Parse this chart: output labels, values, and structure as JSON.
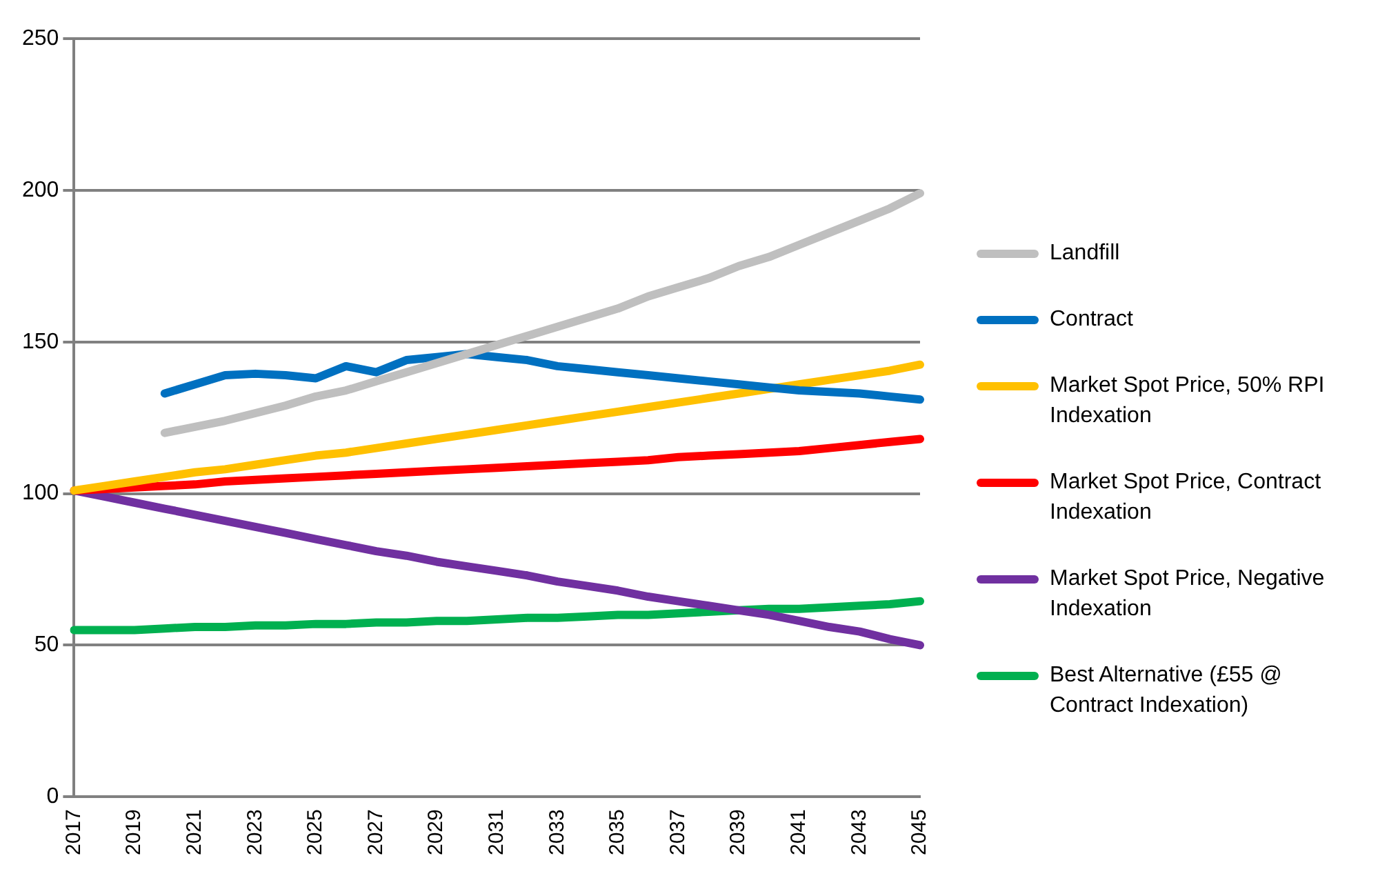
{
  "chart_data": {
    "type": "line",
    "categories": [
      "2017",
      null,
      "2019",
      null,
      "2021",
      null,
      "2023",
      null,
      "2025",
      null,
      "2027",
      null,
      "2029",
      null,
      "2031",
      null,
      "2033",
      null,
      "2035",
      null,
      "2037",
      null,
      "2039",
      null,
      "2041",
      null,
      "2043",
      null,
      "2045"
    ],
    "series": [
      {
        "name": "Landfill",
        "color": "#bfbfbf",
        "values": [
          null,
          null,
          null,
          120,
          122,
          124,
          126.5,
          129,
          132,
          134,
          137,
          140,
          143,
          146,
          149,
          152,
          155,
          158,
          161,
          165,
          168,
          171,
          175,
          178,
          182,
          186,
          190,
          194,
          199
        ]
      },
      {
        "name": "Contract",
        "color": "#0070c0",
        "values": [
          null,
          null,
          null,
          133,
          136,
          139,
          139.5,
          139,
          138,
          142,
          140,
          144,
          145,
          146,
          145,
          144,
          142,
          141,
          140,
          139,
          138,
          137,
          136,
          135,
          134,
          133.5,
          133,
          132,
          131
        ]
      },
      {
        "name": "Market Spot Price, 50% RPI Indexation",
        "color": "#ffc000",
        "values": [
          101,
          102.5,
          104,
          105.5,
          107,
          108,
          109.5,
          111,
          112.5,
          113.5,
          115,
          116.5,
          118,
          119.5,
          121,
          122.5,
          124,
          125.5,
          127,
          128.5,
          130,
          131.5,
          133,
          134.5,
          136,
          137.5,
          139,
          140.5,
          142.5
        ]
      },
      {
        "name": "Market Spot Price, Contract Indexation",
        "color": "#ff0000",
        "values": [
          101,
          101.5,
          102,
          102.5,
          103,
          104,
          104.5,
          105,
          105.5,
          106,
          106.5,
          107,
          107.5,
          108,
          108.5,
          109,
          109.5,
          110,
          110.5,
          111,
          112,
          112.5,
          113,
          113.5,
          114,
          115,
          116,
          117,
          118
        ]
      },
      {
        "name": "Market Spot Price, Negative Indexation",
        "color": "#7030a0",
        "values": [
          101,
          99,
          97,
          95,
          93,
          91,
          89,
          87,
          85,
          83,
          81,
          79.5,
          77.5,
          76,
          74.5,
          73,
          71,
          69.5,
          68,
          66,
          64.5,
          63,
          61.5,
          60,
          58,
          56,
          54.5,
          52,
          50
        ]
      },
      {
        "name": "Best Alternative (£55 @ Contract Indexation)",
        "color": "#00b050",
        "values": [
          55,
          55,
          55,
          55.5,
          56,
          56,
          56.5,
          56.5,
          57,
          57,
          57.5,
          57.5,
          58,
          58,
          58.5,
          59,
          59,
          59.5,
          60,
          60,
          60.5,
          61,
          61.5,
          62,
          62,
          62.5,
          63,
          63.5,
          64.5
        ]
      }
    ],
    "ylim": [
      0,
      250
    ],
    "yticks": [
      0,
      50,
      100,
      150,
      200,
      250
    ],
    "grid": "y",
    "legend": "right",
    "marker": "none",
    "line_style": "solid"
  }
}
